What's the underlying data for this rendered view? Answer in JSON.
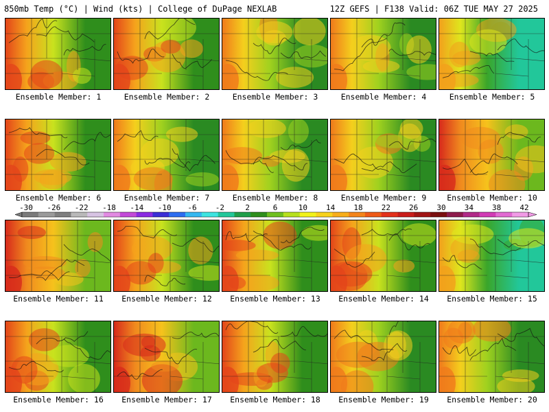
{
  "header": {
    "left": "850mb Temp (°C) | Wind (kts) | College of DuPage NEXLAB",
    "right": "12Z GEFS | F138 Valid: 06Z TUE MAY 27 2025"
  },
  "colorbar": {
    "ticks": [
      "-30",
      "-26",
      "-22",
      "-18",
      "-14",
      "-10",
      "-6",
      "-2",
      "2",
      "6",
      "10",
      "14",
      "18",
      "22",
      "26",
      "30",
      "34",
      "38",
      "42"
    ],
    "colors": [
      "#7a7a7a",
      "#9a9a9a",
      "#7f7f7f",
      "#b9b9b9",
      "#d7c3e3",
      "#e28ae2",
      "#c24ad8",
      "#8a2be2",
      "#3b2ed6",
      "#2d6df0",
      "#35b7f0",
      "#3ee4e0",
      "#22c79a",
      "#1f9e4a",
      "#2f8e1c",
      "#6fbf1f",
      "#b7e01e",
      "#f2f21a",
      "#f8d21c",
      "#f7ae1a",
      "#f3841a",
      "#ee5a17",
      "#e3311b",
      "#c91c1a",
      "#a11414",
      "#7a0f0f",
      "#8d1b4c",
      "#b12a88",
      "#d13cb5",
      "#e26ad2",
      "#f19ae6"
    ]
  },
  "members": [
    {
      "label": "Ensemble Member: 1",
      "palette": "warm"
    },
    {
      "label": "Ensemble Member: 2",
      "palette": "warm"
    },
    {
      "label": "Ensemble Member: 3",
      "palette": "mild"
    },
    {
      "label": "Ensemble Member: 4",
      "palette": "mild"
    },
    {
      "label": "Ensemble Member: 5",
      "palette": "cool"
    },
    {
      "label": "Ensemble Member: 6",
      "palette": "warm"
    },
    {
      "label": "Ensemble Member: 7",
      "palette": "mild"
    },
    {
      "label": "Ensemble Member: 8",
      "palette": "mild"
    },
    {
      "label": "Ensemble Member: 9",
      "palette": "mild"
    },
    {
      "label": "Ensemble Member: 10",
      "palette": "hot"
    },
    {
      "label": "Ensemble Member: 11",
      "palette": "hot"
    },
    {
      "label": "Ensemble Member: 12",
      "palette": "warm"
    },
    {
      "label": "Ensemble Member: 13",
      "palette": "warm"
    },
    {
      "label": "Ensemble Member: 14",
      "palette": "warm"
    },
    {
      "label": "Ensemble Member: 15",
      "palette": "cool"
    },
    {
      "label": "Ensemble Member: 16",
      "palette": "warm"
    },
    {
      "label": "Ensemble Member: 17",
      "palette": "hot"
    },
    {
      "label": "Ensemble Member: 18",
      "palette": "warm"
    },
    {
      "label": "Ensemble Member: 19",
      "palette": "mild"
    },
    {
      "label": "Ensemble Member: 20",
      "palette": "mild"
    }
  ]
}
